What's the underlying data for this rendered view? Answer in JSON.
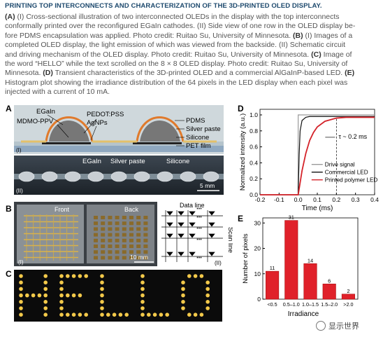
{
  "header": {
    "title": "PRINTING TOP INTERCONNECTS AND CHARACTERIZATION OF THE 3D-PRINTED OLED DISPLAY."
  },
  "caption": {
    "lines": [
      [
        {
          "b": "(A)"
        },
        {
          "t": " (I) Cross-sectional illustration of two interconnected OLEDs in the display with the top interconnects"
        }
      ],
      [
        {
          "t": "conformally printed over the reconfigured EGaIn cathodes. (II) Side view of one row in the OLED display be-"
        }
      ],
      [
        {
          "t": "fore PDMS encapsulation was applied. Photo credit: Ruitao Su, University of Minnesota. "
        },
        {
          "b": "(B)"
        },
        {
          "t": " (I) Images of a"
        }
      ],
      [
        {
          "t": "completed OLED display, the light emission of which was viewed from the backside. (II) Schematic circuit"
        }
      ],
      [
        {
          "t": "and driving mechanism of the OLED display. Photo credit: Ruitao Su, University of Minnesota. "
        },
        {
          "b": "(C)"
        },
        {
          "t": " Image of"
        }
      ],
      [
        {
          "t": "the word “HELLO” while the text scrolled on the 8 × 8 OLED display. Photo credit: Ruitao Su, University of"
        }
      ],
      [
        {
          "t": "Minnesota. "
        },
        {
          "b": "(D)"
        },
        {
          "t": " Transient characteristics of the 3D-printed OLED and a commercial AlGaInP-based LED. "
        },
        {
          "b": "(E)"
        }
      ],
      [
        {
          "t": "Histogram plot showing the irradiance distribution of the 64 pixels in the LED display when each pixel was"
        }
      ],
      [
        {
          "t": "injected with a current of 10 mA."
        }
      ]
    ]
  },
  "panel_labels": {
    "a": "A",
    "b": "B",
    "c": "C",
    "d": "D",
    "e": "E"
  },
  "panel_a": {
    "labels": {
      "egain": "EGaIn",
      "mdmo": "MDMO-PPV",
      "pedot": "PEDOT:PSS",
      "agnps": "AgNPs",
      "pdms": "PDMS",
      "silver": "Silver paste",
      "silicone": "Silicone",
      "pet": "PET film",
      "sub1": "(I)"
    },
    "photo_labels": {
      "egain": "EGaIn",
      "silver": "Silver paste",
      "silicone": "Silicone",
      "scale": "5 mm",
      "sub2": "(II)"
    }
  },
  "panel_b": {
    "front": "Front",
    "back": "Back",
    "scale": "10 mm",
    "sub1": "(I)",
    "sub2": "(II)",
    "data_line": "Data line",
    "scan_line": "Scan line"
  },
  "panel_c": {
    "word": "HELLO"
  },
  "chart_data": [
    {
      "type": "line",
      "panel": "D",
      "xlabel": "Time (ms)",
      "ylabel": "Normalized intensity (a.u.)",
      "xlim": [
        -0.2,
        0.4
      ],
      "ylim": [
        0.0,
        1.0
      ],
      "xticks": [
        "-0.2",
        "-0.1",
        "0.0",
        "0.1",
        "0.2",
        "0.3",
        "0.4"
      ],
      "yticks": [
        "0.0",
        "0.2",
        "0.4",
        "0.6",
        "0.8",
        "1.0"
      ],
      "annotation": "τ ~ 0.2 ms",
      "legend_position": "bottom-right",
      "series": [
        {
          "name": "Drive signal",
          "color": "#9a9a9a",
          "x": [
            -0.2,
            -0.001,
            0.0,
            0.4
          ],
          "y": [
            0.0,
            0.0,
            1.0,
            1.0
          ]
        },
        {
          "name": "Commercial LED",
          "color": "#111111",
          "x": [
            -0.2,
            0.0,
            0.005,
            0.01,
            0.02,
            0.04,
            0.06,
            0.1,
            0.4
          ],
          "y": [
            0.0,
            0.0,
            0.5,
            0.8,
            0.93,
            0.97,
            0.98,
            0.98,
            0.98
          ]
        },
        {
          "name": "Printed polymer LED",
          "color": "#d4232a",
          "x": [
            -0.2,
            0.0,
            0.02,
            0.04,
            0.06,
            0.08,
            0.1,
            0.14,
            0.2,
            0.25,
            0.3,
            0.4
          ],
          "y": [
            0.0,
            0.0,
            0.3,
            0.52,
            0.68,
            0.78,
            0.85,
            0.92,
            0.96,
            0.97,
            0.97,
            0.97
          ]
        }
      ]
    },
    {
      "type": "bar",
      "panel": "E",
      "categories": [
        "<0.5",
        "0.5–1.0",
        "1.0–1.5",
        "1.5–2.0",
        ">2.0"
      ],
      "values": [
        11,
        31,
        14,
        6,
        2
      ],
      "xlabel": "Irradiance",
      "ylabel": "Number of pixels",
      "ylim": [
        0,
        32
      ],
      "yticks": [
        "0",
        "10",
        "20",
        "30"
      ],
      "bar_color": "#e0212a"
    }
  ],
  "watermark": {
    "text": "显示世界"
  }
}
